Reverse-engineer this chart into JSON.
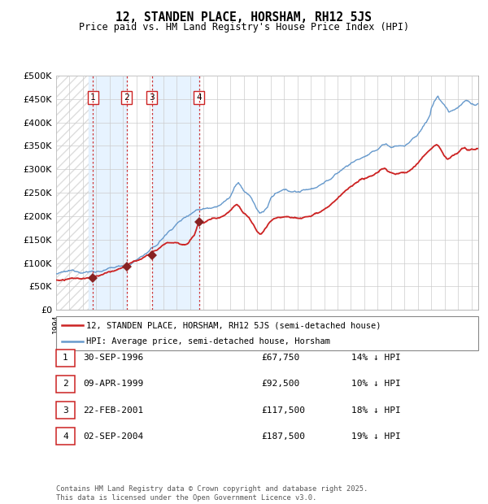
{
  "title": "12, STANDEN PLACE, HORSHAM, RH12 5JS",
  "subtitle": "Price paid vs. HM Land Registry's House Price Index (HPI)",
  "legend_line1": "12, STANDEN PLACE, HORSHAM, RH12 5JS (semi-detached house)",
  "legend_line2": "HPI: Average price, semi-detached house, Horsham",
  "footer": "Contains HM Land Registry data © Crown copyright and database right 2025.\nThis data is licensed under the Open Government Licence v3.0.",
  "transactions": [
    {
      "num": 1,
      "date": "30-SEP-1996",
      "date_val": 1996.75,
      "price": 67750,
      "hpi_diff": "14% ↓ HPI"
    },
    {
      "num": 2,
      "date": "09-APR-1999",
      "date_val": 1999.27,
      "price": 92500,
      "hpi_diff": "10% ↓ HPI"
    },
    {
      "num": 3,
      "date": "22-FEB-2001",
      "date_val": 2001.14,
      "price": 117500,
      "hpi_diff": "18% ↓ HPI"
    },
    {
      "num": 4,
      "date": "02-SEP-2004",
      "date_val": 2004.67,
      "price": 187500,
      "hpi_diff": "19% ↓ HPI"
    }
  ],
  "xmin": 1994.0,
  "xmax": 2025.5,
  "ymin": 0,
  "ymax": 500000,
  "yticks": [
    0,
    50000,
    100000,
    150000,
    200000,
    250000,
    300000,
    350000,
    400000,
    450000,
    500000
  ],
  "ytick_labels": [
    "£0",
    "£50K",
    "£100K",
    "£150K",
    "£200K",
    "£250K",
    "£300K",
    "£350K",
    "£400K",
    "£450K",
    "£500K"
  ],
  "hpi_color": "#6699cc",
  "price_color": "#cc2222",
  "marker_color": "#882222",
  "shade_color": "#ddeeff",
  "hatch_color": "#ccddee",
  "vline_color": "#cc2222",
  "grid_color": "#cccccc",
  "hpi_anchors": [
    [
      1994.0,
      77000
    ],
    [
      1995.0,
      79000
    ],
    [
      1996.0,
      81000
    ],
    [
      1997.0,
      84000
    ],
    [
      1998.0,
      88000
    ],
    [
      1999.0,
      94000
    ],
    [
      1999.5,
      98000
    ],
    [
      2000.0,
      108000
    ],
    [
      2001.0,
      128000
    ],
    [
      2001.5,
      138000
    ],
    [
      2002.0,
      155000
    ],
    [
      2002.5,
      170000
    ],
    [
      2003.0,
      185000
    ],
    [
      2003.5,
      196000
    ],
    [
      2004.0,
      208000
    ],
    [
      2004.5,
      218000
    ],
    [
      2005.0,
      222000
    ],
    [
      2005.5,
      225000
    ],
    [
      2006.0,
      232000
    ],
    [
      2006.5,
      240000
    ],
    [
      2007.0,
      252000
    ],
    [
      2007.3,
      270000
    ],
    [
      2007.6,
      278000
    ],
    [
      2007.8,
      272000
    ],
    [
      2008.0,
      262000
    ],
    [
      2008.3,
      255000
    ],
    [
      2008.6,
      245000
    ],
    [
      2008.8,
      232000
    ],
    [
      2009.0,
      220000
    ],
    [
      2009.2,
      212000
    ],
    [
      2009.5,
      218000
    ],
    [
      2009.8,
      228000
    ],
    [
      2010.0,
      245000
    ],
    [
      2010.3,
      252000
    ],
    [
      2010.6,
      255000
    ],
    [
      2010.9,
      257000
    ],
    [
      2011.0,
      258000
    ],
    [
      2011.3,
      255000
    ],
    [
      2011.6,
      256000
    ],
    [
      2012.0,
      255000
    ],
    [
      2012.5,
      258000
    ],
    [
      2013.0,
      262000
    ],
    [
      2013.5,
      268000
    ],
    [
      2014.0,
      278000
    ],
    [
      2014.5,
      286000
    ],
    [
      2015.0,
      296000
    ],
    [
      2015.5,
      308000
    ],
    [
      2016.0,
      318000
    ],
    [
      2016.5,
      326000
    ],
    [
      2017.0,
      333000
    ],
    [
      2017.5,
      338000
    ],
    [
      2018.0,
      345000
    ],
    [
      2018.3,
      355000
    ],
    [
      2018.6,
      358000
    ],
    [
      2018.9,
      352000
    ],
    [
      2019.0,
      350000
    ],
    [
      2019.3,
      353000
    ],
    [
      2019.6,
      355000
    ],
    [
      2019.9,
      356000
    ],
    [
      2020.0,
      355000
    ],
    [
      2020.3,
      360000
    ],
    [
      2020.6,
      368000
    ],
    [
      2020.9,
      375000
    ],
    [
      2021.0,
      380000
    ],
    [
      2021.3,
      392000
    ],
    [
      2021.6,
      405000
    ],
    [
      2021.9,
      420000
    ],
    [
      2022.0,
      435000
    ],
    [
      2022.2,
      448000
    ],
    [
      2022.4,
      458000
    ],
    [
      2022.5,
      462000
    ],
    [
      2022.6,
      455000
    ],
    [
      2022.8,
      448000
    ],
    [
      2023.0,
      442000
    ],
    [
      2023.2,
      435000
    ],
    [
      2023.3,
      428000
    ],
    [
      2023.5,
      430000
    ],
    [
      2023.7,
      432000
    ],
    [
      2023.9,
      435000
    ],
    [
      2024.0,
      438000
    ],
    [
      2024.2,
      442000
    ],
    [
      2024.4,
      448000
    ],
    [
      2024.6,
      452000
    ],
    [
      2024.8,
      450000
    ],
    [
      2025.0,
      445000
    ],
    [
      2025.3,
      442000
    ],
    [
      2025.5,
      445000
    ]
  ],
  "price_anchors": [
    [
      1994.0,
      64000
    ],
    [
      1995.0,
      65000
    ],
    [
      1996.0,
      65500
    ],
    [
      1996.75,
      67750
    ],
    [
      1997.0,
      68500
    ],
    [
      1997.5,
      72000
    ],
    [
      1998.0,
      76000
    ],
    [
      1998.5,
      82000
    ],
    [
      1999.0,
      88000
    ],
    [
      1999.27,
      92500
    ],
    [
      1999.5,
      96000
    ],
    [
      2000.0,
      102000
    ],
    [
      2000.5,
      108000
    ],
    [
      2001.0,
      114000
    ],
    [
      2001.14,
      117500
    ],
    [
      2001.5,
      124000
    ],
    [
      2002.0,
      135000
    ],
    [
      2002.5,
      140000
    ],
    [
      2003.0,
      142000
    ],
    [
      2003.3,
      140000
    ],
    [
      2003.6,
      138000
    ],
    [
      2003.9,
      142000
    ],
    [
      2004.0,
      148000
    ],
    [
      2004.3,
      158000
    ],
    [
      2004.67,
      187500
    ],
    [
      2004.8,
      185000
    ],
    [
      2005.0,
      183000
    ],
    [
      2005.3,
      188000
    ],
    [
      2005.6,
      192000
    ],
    [
      2006.0,
      195000
    ],
    [
      2006.3,
      200000
    ],
    [
      2006.6,
      205000
    ],
    [
      2007.0,
      215000
    ],
    [
      2007.3,
      225000
    ],
    [
      2007.5,
      228000
    ],
    [
      2007.7,
      222000
    ],
    [
      2008.0,
      210000
    ],
    [
      2008.2,
      205000
    ],
    [
      2008.4,
      200000
    ],
    [
      2008.6,
      190000
    ],
    [
      2008.8,
      180000
    ],
    [
      2009.0,
      168000
    ],
    [
      2009.2,
      163000
    ],
    [
      2009.3,
      162000
    ],
    [
      2009.5,
      168000
    ],
    [
      2009.7,
      175000
    ],
    [
      2010.0,
      188000
    ],
    [
      2010.3,
      196000
    ],
    [
      2010.6,
      200000
    ],
    [
      2011.0,
      202000
    ],
    [
      2011.3,
      205000
    ],
    [
      2011.6,
      204000
    ],
    [
      2012.0,
      204000
    ],
    [
      2012.5,
      206000
    ],
    [
      2013.0,
      210000
    ],
    [
      2013.5,
      218000
    ],
    [
      2014.0,
      228000
    ],
    [
      2014.5,
      238000
    ],
    [
      2015.0,
      248000
    ],
    [
      2015.5,
      262000
    ],
    [
      2016.0,
      272000
    ],
    [
      2016.5,
      278000
    ],
    [
      2017.0,
      283000
    ],
    [
      2017.5,
      290000
    ],
    [
      2018.0,
      298000
    ],
    [
      2018.3,
      305000
    ],
    [
      2018.5,
      308000
    ],
    [
      2018.7,
      302000
    ],
    [
      2019.0,
      298000
    ],
    [
      2019.3,
      295000
    ],
    [
      2019.6,
      297000
    ],
    [
      2019.9,
      299000
    ],
    [
      2020.0,
      298000
    ],
    [
      2020.3,
      302000
    ],
    [
      2020.6,
      310000
    ],
    [
      2020.9,
      318000
    ],
    [
      2021.0,
      320000
    ],
    [
      2021.3,
      330000
    ],
    [
      2021.6,
      340000
    ],
    [
      2021.9,
      348000
    ],
    [
      2022.0,
      350000
    ],
    [
      2022.2,
      355000
    ],
    [
      2022.4,
      358000
    ],
    [
      2022.5,
      356000
    ],
    [
      2022.7,
      348000
    ],
    [
      2023.0,
      335000
    ],
    [
      2023.2,
      328000
    ],
    [
      2023.4,
      330000
    ],
    [
      2023.6,
      335000
    ],
    [
      2023.8,
      338000
    ],
    [
      2024.0,
      342000
    ],
    [
      2024.2,
      348000
    ],
    [
      2024.5,
      352000
    ],
    [
      2024.7,
      348000
    ],
    [
      2025.0,
      350000
    ],
    [
      2025.3,
      348000
    ],
    [
      2025.5,
      350000
    ]
  ]
}
